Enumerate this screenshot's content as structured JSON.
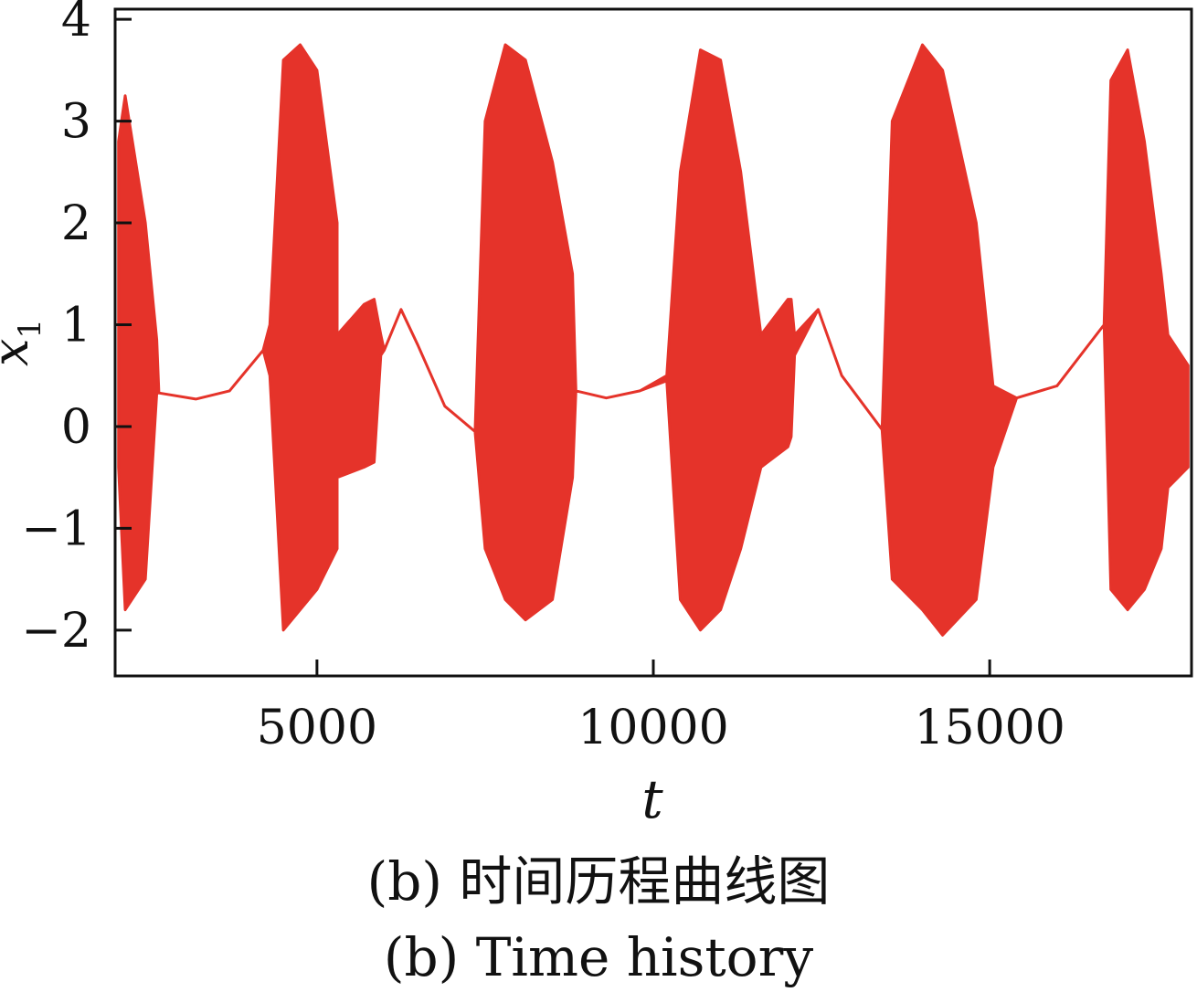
{
  "chart_data": {
    "type": "line",
    "title": "",
    "xlabel": "t",
    "ylabel": "x",
    "ylabel_subscript": "1",
    "xlim": [
      2000,
      18000
    ],
    "ylim": [
      -2.45,
      4.1
    ],
    "x_ticks": [
      5000,
      10000,
      15000
    ],
    "x_tick_labels": [
      "5000",
      "10000",
      "15000"
    ],
    "y_ticks": [
      -2,
      -1,
      0,
      1,
      2,
      3,
      4
    ],
    "y_tick_labels": [
      "−2",
      "−1",
      "0",
      "1",
      "2",
      "3",
      "4"
    ],
    "grid": false,
    "legend": "none",
    "color": "#e5332a",
    "series": [
      {
        "envelope_upper": [
          [
            2050,
            2.8
          ],
          [
            2150,
            3.25
          ],
          [
            2450,
            2.0
          ],
          [
            2620,
            0.85
          ],
          [
            2650,
            0.33
          ],
          [
            3200,
            0.27
          ],
          [
            3700,
            0.35
          ],
          [
            4200,
            0.75
          ],
          [
            4300,
            1.0
          ],
          [
            4500,
            3.6
          ],
          [
            4750,
            3.75
          ],
          [
            5000,
            3.5
          ],
          [
            5300,
            2.0
          ],
          [
            5300,
            0.9
          ],
          [
            5700,
            1.2
          ],
          [
            5850,
            1.25
          ],
          [
            5950,
            0.9
          ],
          [
            6000,
            0.75
          ],
          [
            6250,
            1.15
          ],
          [
            6500,
            0.8
          ],
          [
            6900,
            0.2
          ],
          [
            7350,
            -0.05
          ],
          [
            7500,
            3.0
          ],
          [
            7800,
            3.75
          ],
          [
            8100,
            3.6
          ],
          [
            8500,
            2.6
          ],
          [
            8800,
            1.5
          ],
          [
            8850,
            0.35
          ],
          [
            9300,
            0.28
          ],
          [
            9800,
            0.35
          ],
          [
            10200,
            0.5
          ],
          [
            10400,
            2.5
          ],
          [
            10700,
            3.7
          ],
          [
            11000,
            3.6
          ],
          [
            11300,
            2.5
          ],
          [
            11600,
            0.9
          ],
          [
            12000,
            1.25
          ],
          [
            12050,
            1.25
          ],
          [
            12100,
            0.9
          ],
          [
            12450,
            1.15
          ],
          [
            12800,
            0.5
          ],
          [
            13400,
            -0.03
          ],
          [
            13550,
            3.0
          ],
          [
            14000,
            3.75
          ],
          [
            14300,
            3.5
          ],
          [
            14800,
            2.0
          ],
          [
            15050,
            0.4
          ],
          [
            15400,
            0.28
          ],
          [
            16000,
            0.4
          ],
          [
            16700,
            1.0
          ],
          [
            16800,
            3.4
          ],
          [
            17050,
            3.7
          ],
          [
            17300,
            2.8
          ],
          [
            17550,
            1.5
          ],
          [
            17650,
            0.9
          ],
          [
            17950,
            0.6
          ]
        ],
        "envelope_lower": [
          [
            2050,
            -0.4
          ],
          [
            2150,
            -1.8
          ],
          [
            2450,
            -1.5
          ],
          [
            2620,
            0.33
          ],
          [
            2650,
            0.33
          ],
          [
            3200,
            0.27
          ],
          [
            3700,
            0.35
          ],
          [
            4200,
            0.75
          ],
          [
            4300,
            0.5
          ],
          [
            4500,
            -2.0
          ],
          [
            4750,
            -1.8
          ],
          [
            5000,
            -1.6
          ],
          [
            5300,
            -1.2
          ],
          [
            5300,
            -0.5
          ],
          [
            5700,
            -0.4
          ],
          [
            5850,
            -0.35
          ],
          [
            5950,
            0.7
          ],
          [
            6000,
            0.75
          ],
          [
            6250,
            1.15
          ],
          [
            6500,
            0.8
          ],
          [
            6900,
            0.2
          ],
          [
            7350,
            -0.05
          ],
          [
            7500,
            -1.2
          ],
          [
            7800,
            -1.7
          ],
          [
            8100,
            -1.9
          ],
          [
            8500,
            -1.7
          ],
          [
            8800,
            -0.5
          ],
          [
            8850,
            0.35
          ],
          [
            9300,
            0.28
          ],
          [
            9800,
            0.35
          ],
          [
            10200,
            0.45
          ],
          [
            10400,
            -1.7
          ],
          [
            10700,
            -2.0
          ],
          [
            11000,
            -1.8
          ],
          [
            11300,
            -1.2
          ],
          [
            11600,
            -0.4
          ],
          [
            12000,
            -0.2
          ],
          [
            12050,
            -0.1
          ],
          [
            12100,
            0.7
          ],
          [
            12450,
            1.15
          ],
          [
            12800,
            0.5
          ],
          [
            13400,
            -0.03
          ],
          [
            13550,
            -1.5
          ],
          [
            14000,
            -1.8
          ],
          [
            14300,
            -2.05
          ],
          [
            14800,
            -1.7
          ],
          [
            15050,
            -0.4
          ],
          [
            15400,
            0.28
          ],
          [
            16000,
            0.4
          ],
          [
            16700,
            1.0
          ],
          [
            16800,
            -1.6
          ],
          [
            17050,
            -1.8
          ],
          [
            17300,
            -1.6
          ],
          [
            17550,
            -1.2
          ],
          [
            17650,
            -0.6
          ],
          [
            17950,
            -0.4
          ]
        ]
      }
    ]
  },
  "captions": {
    "zh": "(b)  时间历程曲线图",
    "en": "(b)  Time history"
  }
}
